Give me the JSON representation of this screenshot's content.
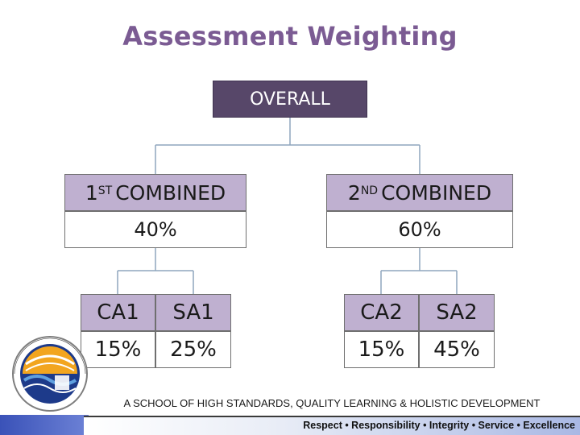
{
  "title": "Assessment Weighting",
  "overall": {
    "label": "OVERALL"
  },
  "combined": [
    {
      "ordinal": "1",
      "suffix": "ST",
      "label": "COMBINED",
      "weight": "40%"
    },
    {
      "ordinal": "2",
      "suffix": "ND",
      "label": "COMBINED",
      "weight": "60%"
    }
  ],
  "components": [
    {
      "name": "CA1",
      "weight": "15%"
    },
    {
      "name": "SA1",
      "weight": "25%"
    },
    {
      "name": "CA2",
      "weight": "15%"
    },
    {
      "name": "SA2",
      "weight": "45%"
    }
  ],
  "footer": {
    "motto": "A SCHOOL OF HIGH STANDARDS, QUALITY LEARNING & HOLISTIC DEVELOPMENT",
    "values": "Respect • Responsibility • Integrity • Service • Excellence"
  },
  "colors": {
    "title": "#7b5b93",
    "overall_fill": "#574769",
    "header_fill": "#bfb0d0",
    "connector": "#8fa6bd",
    "footer_stripe": "#3a52b8"
  }
}
